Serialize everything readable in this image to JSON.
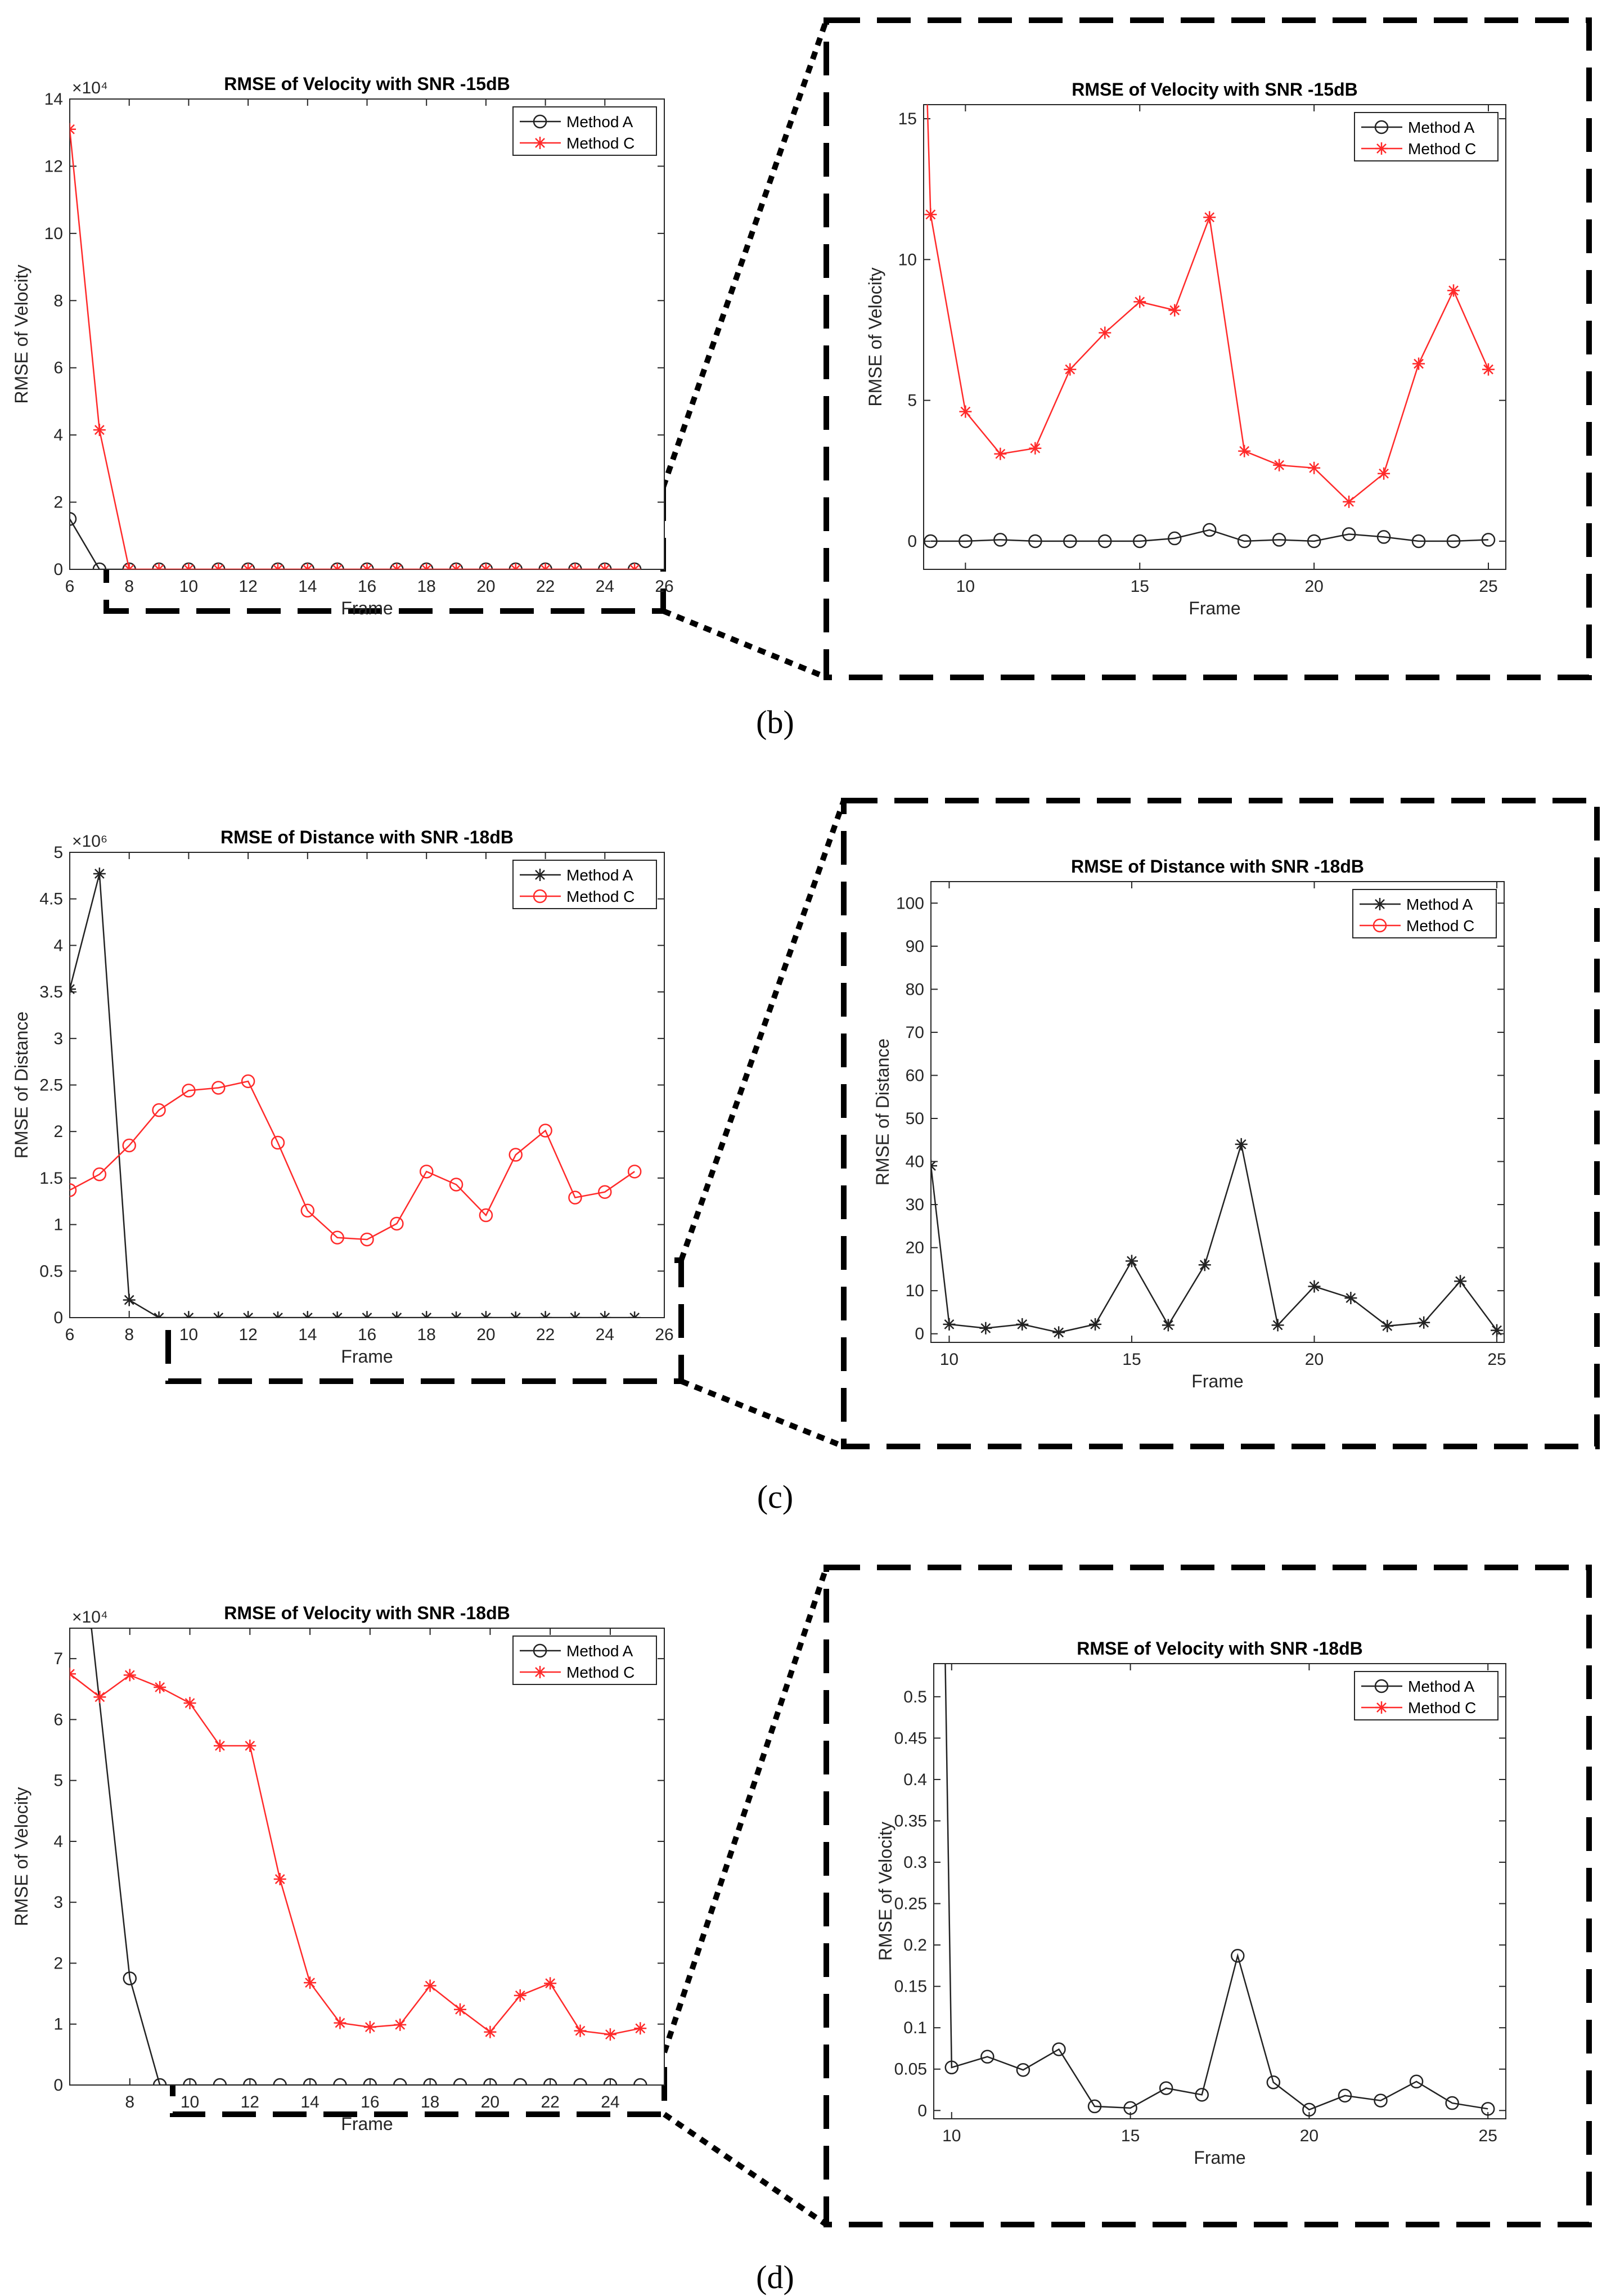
{
  "colors": {
    "method_a": "#222222",
    "method_c": "#ff2a2a",
    "frame": "#000000",
    "axis_text": "#262626"
  },
  "panel_labels": [
    "(b)",
    "(c)",
    "(d)"
  ],
  "chart_data": [
    {
      "id": "b-main",
      "type": "line",
      "title": "RMSE of Velocity with SNR -15dB",
      "xlabel": "Frame",
      "ylabel": "RMSE of Velocity",
      "exponent_label": "×10⁴",
      "xlim": [
        6,
        26
      ],
      "ylim": [
        0,
        14
      ],
      "xticks": [
        6,
        8,
        10,
        12,
        14,
        16,
        18,
        20,
        22,
        24,
        26
      ],
      "yticks": [
        0,
        2,
        4,
        6,
        8,
        10,
        12,
        14
      ],
      "legend": "top-right",
      "series": [
        {
          "name": "Method A",
          "marker": "circle",
          "color": "#222222",
          "x": [
            6,
            7,
            8,
            9,
            10,
            11,
            12,
            13,
            14,
            15,
            16,
            17,
            18,
            19,
            20,
            21,
            22,
            23,
            24,
            25
          ],
          "y": [
            1.5,
            0,
            0,
            0,
            0,
            0,
            0,
            0,
            0,
            0,
            0,
            0,
            0,
            0,
            0,
            0,
            0,
            0,
            0,
            0
          ]
        },
        {
          "name": "Method C",
          "marker": "star",
          "color": "#ff2a2a",
          "x": [
            6,
            7,
            8,
            9,
            10,
            11,
            12,
            13,
            14,
            15,
            16,
            17,
            18,
            19,
            20,
            21,
            22,
            23,
            24,
            25
          ],
          "y": [
            13.1,
            4.15,
            0,
            0,
            0,
            0,
            0,
            0,
            0,
            0,
            0,
            0,
            0,
            0,
            0,
            0,
            0,
            0,
            0,
            0
          ]
        }
      ]
    },
    {
      "id": "b-zoom",
      "type": "line",
      "title": "RMSE of Velocity with SNR -15dB",
      "xlabel": "Frame",
      "ylabel": "RMSE of Velocity",
      "xlim": [
        8.8,
        25.5
      ],
      "ylim": [
        -1,
        15.5
      ],
      "xticks": [
        10,
        15,
        20,
        25
      ],
      "yticks": [
        0,
        5,
        10,
        15
      ],
      "legend": "top-right",
      "series": [
        {
          "name": "Method A",
          "marker": "circle",
          "color": "#222222",
          "x": [
            9,
            10,
            11,
            12,
            13,
            14,
            15,
            16,
            17,
            18,
            19,
            20,
            21,
            22,
            23,
            24,
            25
          ],
          "y": [
            0,
            0,
            0.05,
            0,
            0,
            0,
            0,
            0.1,
            0.4,
            0,
            0.05,
            0,
            0.25,
            0.15,
            0,
            0,
            0.05
          ]
        },
        {
          "name": "Method C",
          "marker": "star",
          "color": "#ff2a2a",
          "x": [
            8.8,
            9,
            10,
            11,
            12,
            13,
            14,
            15,
            16,
            17,
            18,
            19,
            20,
            21,
            22,
            23,
            24,
            25
          ],
          "y": [
            20,
            11.6,
            4.6,
            3.1,
            3.3,
            6.1,
            7.4,
            8.5,
            8.2,
            11.5,
            3.2,
            2.7,
            2.6,
            1.4,
            2.4,
            6.3,
            8.9,
            6.1
          ]
        }
      ]
    },
    {
      "id": "c-main",
      "type": "line",
      "title": "RMSE of Distance with SNR -18dB",
      "xlabel": "Frame",
      "ylabel": "RMSE of Distance",
      "exponent_label": "×10⁶",
      "xlim": [
        6,
        26
      ],
      "ylim": [
        0,
        5
      ],
      "xticks": [
        6,
        8,
        10,
        12,
        14,
        16,
        18,
        20,
        22,
        24,
        26
      ],
      "yticks": [
        0,
        0.5,
        1,
        1.5,
        2,
        2.5,
        3,
        3.5,
        4,
        4.5,
        5
      ],
      "legend": "top-right",
      "series": [
        {
          "name": "Method A",
          "marker": "star",
          "color": "#222222",
          "x": [
            6,
            7,
            8,
            9,
            10,
            11,
            12,
            13,
            14,
            15,
            16,
            17,
            18,
            19,
            20,
            21,
            22,
            23,
            24,
            25
          ],
          "y": [
            3.53,
            4.77,
            0.19,
            0,
            0,
            0,
            0,
            0,
            0,
            0,
            0,
            0,
            0,
            0,
            0,
            0,
            0,
            0,
            0,
            0
          ]
        },
        {
          "name": "Method C",
          "marker": "circle",
          "color": "#ff2a2a",
          "x": [
            6,
            7,
            8,
            9,
            10,
            11,
            12,
            13,
            14,
            15,
            16,
            17,
            18,
            19,
            20,
            21,
            22,
            23,
            24,
            25
          ],
          "y": [
            1.37,
            1.54,
            1.85,
            2.23,
            2.44,
            2.47,
            2.54,
            1.88,
            1.15,
            0.86,
            0.84,
            1.01,
            1.57,
            1.43,
            1.1,
            1.75,
            2.01,
            1.29,
            1.35,
            1.57
          ]
        }
      ]
    },
    {
      "id": "c-zoom",
      "type": "line",
      "title": "RMSE of Distance with SNR -18dB",
      "xlabel": "Frame",
      "ylabel": "RMSE of Distance",
      "xlim": [
        9.5,
        25.2
      ],
      "ylim": [
        -2,
        105
      ],
      "xticks": [
        10,
        15,
        20,
        25
      ],
      "yticks": [
        0,
        10,
        20,
        30,
        40,
        50,
        60,
        70,
        80,
        90,
        100
      ],
      "legend": "top-right",
      "series": [
        {
          "name": "Method A",
          "marker": "star",
          "color": "#222222",
          "x": [
            9.5,
            10,
            11,
            12,
            13,
            14,
            15,
            16,
            17,
            18,
            19,
            20,
            21,
            22,
            23,
            24,
            25
          ],
          "y": [
            39,
            2.2,
            1.3,
            2.2,
            0.3,
            2.2,
            16.9,
            2,
            16,
            44,
            2,
            11,
            8.3,
            1.8,
            2.6,
            12.2,
            0.8
          ]
        },
        {
          "name": "Method C",
          "marker": "circle",
          "color": "#ff2a2a",
          "x": [],
          "y": []
        }
      ]
    },
    {
      "id": "d-main",
      "type": "line",
      "title": "RMSE of Velocity with SNR -18dB",
      "xlabel": "Frame",
      "ylabel": "RMSE of Velocity",
      "exponent_label": "×10⁴",
      "xlim": [
        6,
        25.8
      ],
      "ylim": [
        0,
        7.5
      ],
      "xticks": [
        8,
        10,
        12,
        14,
        16,
        18,
        20,
        22,
        24
      ],
      "yticks": [
        0,
        1,
        2,
        3,
        4,
        5,
        6,
        7
      ],
      "legend": "top-right",
      "series": [
        {
          "name": "Method A",
          "marker": "circle",
          "color": "#222222",
          "x": [
            6.7,
            8,
            9,
            10,
            11,
            12,
            13,
            14,
            15,
            16,
            17,
            18,
            19,
            20,
            21,
            22,
            23,
            24,
            25
          ],
          "y": [
            7.6,
            1.75,
            0,
            0,
            0,
            0,
            0,
            0,
            0,
            0,
            0,
            0,
            0,
            0,
            0,
            0,
            0,
            0,
            0
          ]
        },
        {
          "name": "Method C",
          "marker": "star",
          "color": "#ff2a2a",
          "x": [
            6,
            7,
            8,
            9,
            10,
            11,
            12,
            13,
            14,
            15,
            16,
            17,
            18,
            19,
            20,
            21,
            22,
            23,
            24,
            25
          ],
          "y": [
            6.75,
            6.37,
            6.73,
            6.53,
            6.27,
            5.57,
            5.57,
            3.38,
            1.68,
            1.02,
            0.95,
            0.99,
            1.63,
            1.24,
            0.87,
            1.47,
            1.67,
            0.89,
            0.83,
            0.93
          ]
        }
      ]
    },
    {
      "id": "d-zoom",
      "type": "line",
      "title": "RMSE of Velocity with SNR -18dB",
      "xlabel": "Frame",
      "ylabel": "RMSE of Velocity",
      "xlim": [
        9.5,
        25.5
      ],
      "ylim": [
        -0.01,
        0.54
      ],
      "xticks": [
        10,
        15,
        20,
        25
      ],
      "yticks": [
        0,
        0.05,
        0.1,
        0.15,
        0.2,
        0.25,
        0.3,
        0.35,
        0.4,
        0.45,
        0.5
      ],
      "legend": "top-right",
      "series": [
        {
          "name": "Method A",
          "marker": "circle",
          "color": "#222222",
          "x": [
            9.8,
            10,
            11,
            12,
            13,
            14,
            15,
            16,
            17,
            18,
            19,
            20,
            21,
            22,
            23,
            24,
            25
          ],
          "y": [
            0.6,
            0.052,
            0.065,
            0.049,
            0.074,
            0.005,
            0.003,
            0.027,
            0.019,
            0.187,
            0.034,
            0.001,
            0.018,
            0.012,
            0.035,
            0.009,
            0.002
          ]
        },
        {
          "name": "Method C",
          "marker": "star",
          "color": "#ff2a2a",
          "x": [],
          "y": []
        }
      ]
    }
  ]
}
